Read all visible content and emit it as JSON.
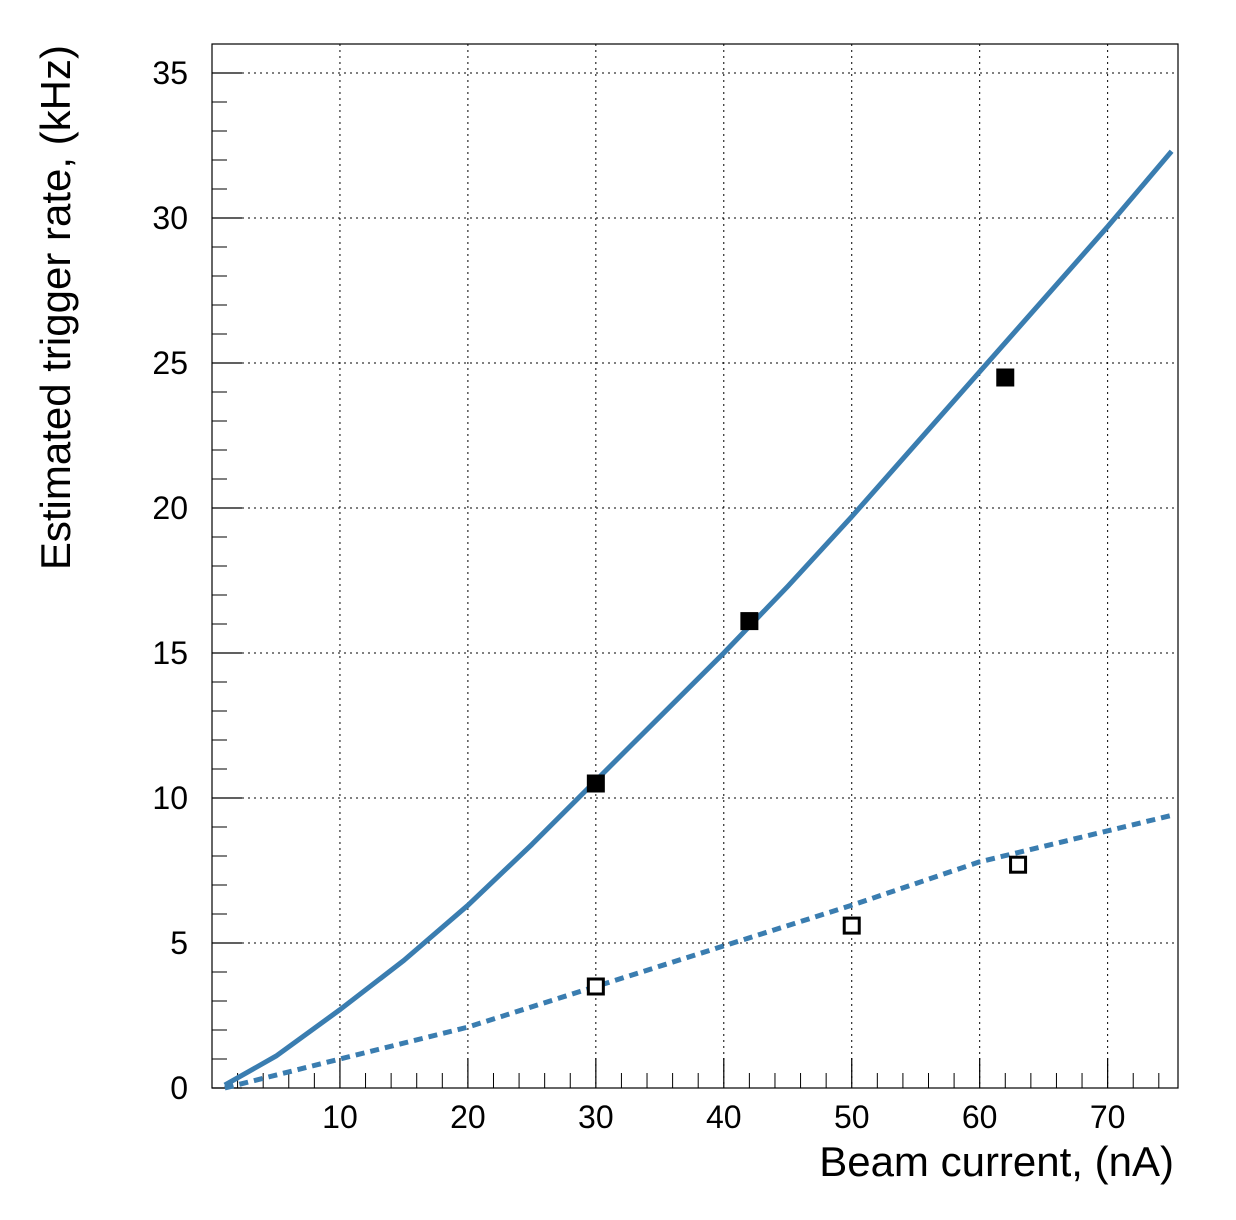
{
  "chart_data": {
    "type": "scatter",
    "title": "",
    "xlabel": "Beam current, (nA)",
    "ylabel": "Estimated trigger rate, (kHz)",
    "xlim": [
      0,
      75.5
    ],
    "ylim": [
      0,
      36
    ],
    "x_ticks": [
      10,
      20,
      30,
      40,
      50,
      60,
      70
    ],
    "y_ticks": [
      0,
      5,
      10,
      15,
      20,
      25,
      30,
      35
    ],
    "grid": true,
    "legend": "none",
    "colors": {
      "fit": "#3a7db0",
      "marker": "#000000"
    },
    "series": [
      {
        "marker": "filled-square",
        "points": [
          {
            "x": 30,
            "y": 10.5
          },
          {
            "x": 42,
            "y": 16.1
          },
          {
            "x": 62,
            "y": 24.5
          }
        ]
      },
      {
        "marker": "open-square",
        "points": [
          {
            "x": 30,
            "y": 3.5
          },
          {
            "x": 50,
            "y": 5.6
          },
          {
            "x": 63,
            "y": 7.7
          }
        ]
      }
    ],
    "curves": [
      {
        "style": "solid",
        "points": [
          {
            "x": 1,
            "y": 0.1
          },
          {
            "x": 5,
            "y": 1.1
          },
          {
            "x": 10,
            "y": 2.7
          },
          {
            "x": 15,
            "y": 4.4
          },
          {
            "x": 20,
            "y": 6.3
          },
          {
            "x": 25,
            "y": 8.4
          },
          {
            "x": 30,
            "y": 10.6
          },
          {
            "x": 35,
            "y": 12.8
          },
          {
            "x": 40,
            "y": 15.0
          },
          {
            "x": 45,
            "y": 17.3
          },
          {
            "x": 50,
            "y": 19.7
          },
          {
            "x": 55,
            "y": 22.2
          },
          {
            "x": 60,
            "y": 24.7
          },
          {
            "x": 65,
            "y": 27.2
          },
          {
            "x": 70,
            "y": 29.7
          },
          {
            "x": 75,
            "y": 32.3
          }
        ]
      },
      {
        "style": "dotted",
        "points": [
          {
            "x": 1,
            "y": 0.0
          },
          {
            "x": 10,
            "y": 1.0
          },
          {
            "x": 20,
            "y": 2.1
          },
          {
            "x": 30,
            "y": 3.5
          },
          {
            "x": 40,
            "y": 4.9
          },
          {
            "x": 50,
            "y": 6.3
          },
          {
            "x": 60,
            "y": 7.8
          },
          {
            "x": 75,
            "y": 9.4
          }
        ]
      }
    ]
  }
}
